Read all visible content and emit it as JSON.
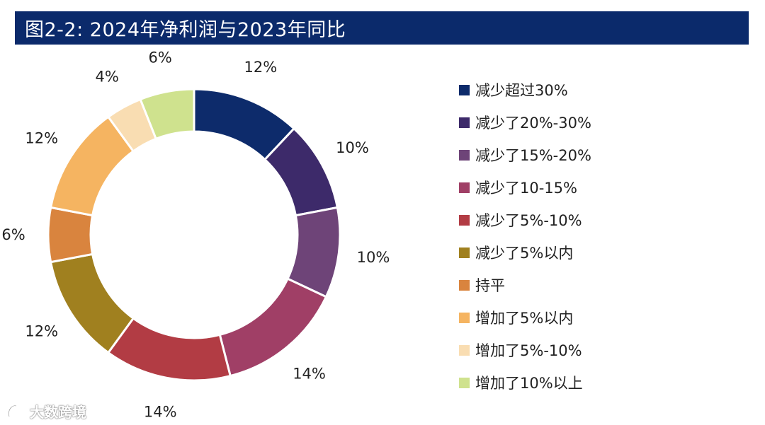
{
  "header": {
    "title": "图2-2: 2024年净利润与2023年同比"
  },
  "watermark": {
    "text": "大数跨境"
  },
  "chart_data": {
    "type": "pie",
    "donut": true,
    "title": "图2-2: 2024年净利润与2023年同比",
    "legend_position": "right",
    "categories": [
      "减少超过30%",
      "减少了20%-30%",
      "减少了15%-20%",
      "减少了10-15%",
      "减少了5%-10%",
      "减少了5%以内",
      "持平",
      "增加了5%以内",
      "增加了5%-10%",
      "增加了10%以上"
    ],
    "values": [
      12,
      10,
      10,
      14,
      14,
      12,
      6,
      12,
      4,
      6
    ],
    "data_labels": [
      "12%",
      "10%",
      "10%",
      "14%",
      "14%",
      "12%",
      "6%",
      "12%",
      "4%",
      "6%"
    ],
    "colors": [
      "#0d2b6b",
      "#3d2a6a",
      "#6e4478",
      "#a03f66",
      "#b23c44",
      "#a0801f",
      "#d9843e",
      "#f5b461",
      "#f9ddb2",
      "#cfe28e"
    ]
  }
}
